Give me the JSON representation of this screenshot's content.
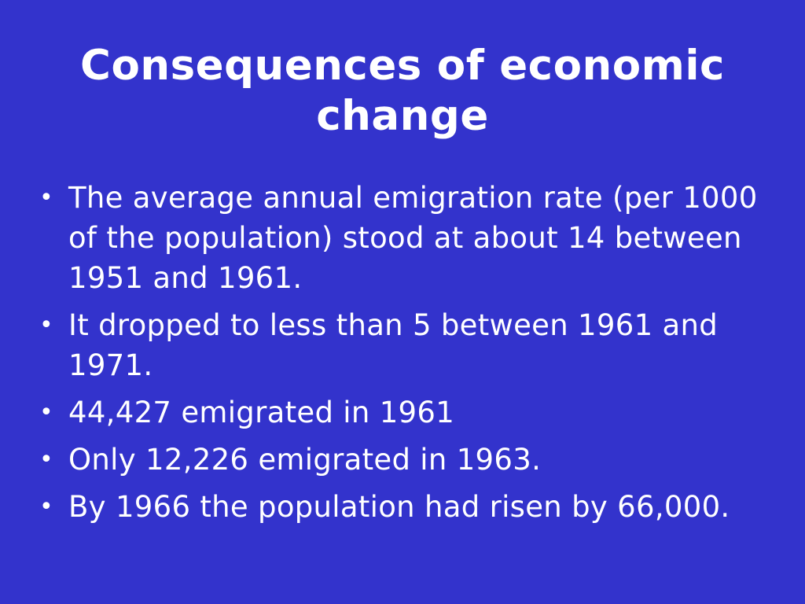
{
  "slide": {
    "title": "Consequences of economic change",
    "bullet_symbol": "•",
    "bullets": [
      "The average annual emigration rate (per 1000 of the population) stood at about 14 between 1951 and 1961.",
      "It dropped to less than 5 between 1961 and 1971.",
      "44,427 emigrated in 1961",
      "Only 12,226 emigrated in 1963.",
      "By 1966 the population had risen by 66,000."
    ]
  },
  "colors": {
    "background": "#3333cc",
    "text": "#ffffff"
  }
}
